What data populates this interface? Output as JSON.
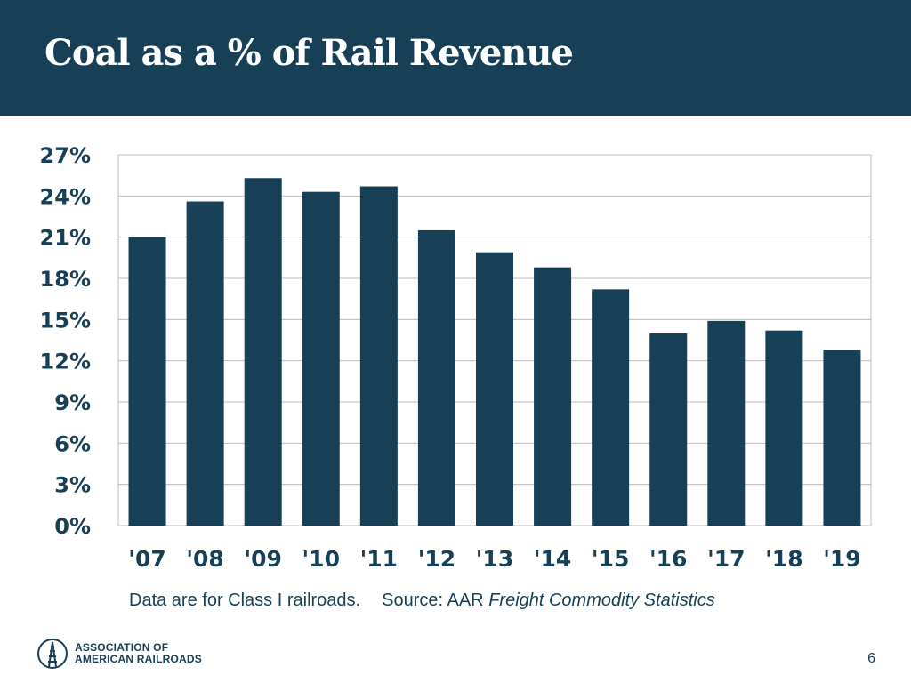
{
  "slide": {
    "title": "Coal as a % of Rail Revenue",
    "footnote": "Data are for Class I railroads.",
    "source_prefix": "Source: AAR",
    "source_title": "Freight Commodity Statistics",
    "logo_line1": "ASSOCIATION OF",
    "logo_line2": "AMERICAN RAILROADS",
    "page_number": "6"
  },
  "colors": {
    "brand": "#173f56",
    "bar": "#173f56",
    "grid": "#bcbcbc"
  },
  "chart_data": {
    "type": "bar",
    "title": "Coal as a % of Rail Revenue",
    "xlabel": "",
    "ylabel": "",
    "categories": [
      "'07",
      "'08",
      "'09",
      "'10",
      "'11",
      "'12",
      "'13",
      "'14",
      "'15",
      "'16",
      "'17",
      "'18",
      "'19"
    ],
    "values": [
      21.0,
      23.6,
      25.3,
      24.3,
      24.7,
      21.5,
      19.9,
      18.8,
      17.2,
      14.0,
      14.9,
      14.2,
      12.8
    ],
    "ylim": [
      0,
      27
    ],
    "yticks": [
      0,
      3,
      6,
      9,
      12,
      15,
      18,
      21,
      24,
      27
    ],
    "ytick_labels": [
      "0%",
      "3%",
      "6%",
      "9%",
      "12%",
      "15%",
      "18%",
      "21%",
      "24%",
      "27%"
    ],
    "grid": true,
    "legend": "none"
  }
}
